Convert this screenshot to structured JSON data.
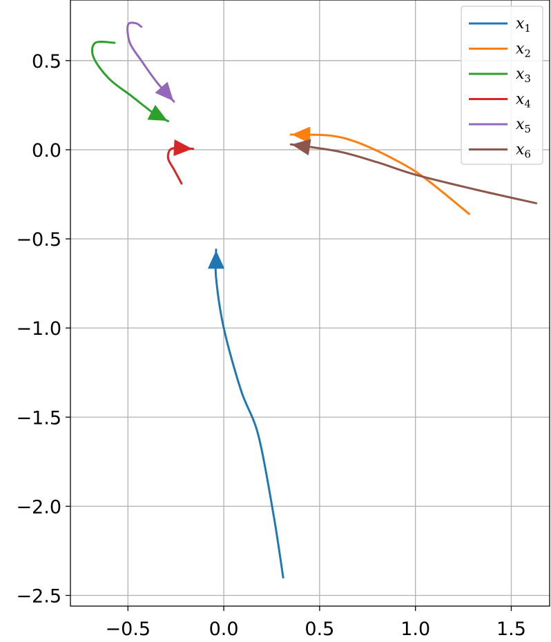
{
  "chart_data": {
    "type": "line",
    "title": "",
    "xlabel": "",
    "ylabel": "",
    "xlim": [
      -0.8,
      1.7
    ],
    "ylim": [
      -2.56,
      0.84
    ],
    "xticks": [
      -0.5,
      0.0,
      0.5,
      1.0,
      1.5
    ],
    "xtick_labels": [
      "−0.5",
      "0.0",
      "0.5",
      "1.0",
      "1.5"
    ],
    "yticks": [
      0.5,
      0.0,
      -0.5,
      -1.0,
      -1.5,
      -2.0,
      -2.5
    ],
    "ytick_labels": [
      "0.5",
      "0.0",
      "−0.5",
      "−1.0",
      "−1.5",
      "−2.0",
      "−2.5"
    ],
    "grid": true,
    "legend_position": "top-right",
    "series": [
      {
        "name": "x",
        "sub": "1",
        "color": "#1f77b4",
        "points": [
          [
            0.31,
            -2.4
          ],
          [
            0.26,
            -2.05
          ],
          [
            0.18,
            -1.6
          ],
          [
            0.09,
            -1.35
          ],
          [
            0.0,
            -1.0
          ],
          [
            -0.04,
            -0.72
          ],
          [
            -0.04,
            -0.56
          ]
        ]
      },
      {
        "name": "x",
        "sub": "2",
        "color": "#ff7f0e",
        "points": [
          [
            1.28,
            -0.36
          ],
          [
            1.05,
            -0.16
          ],
          [
            0.9,
            -0.06
          ],
          [
            0.7,
            0.04
          ],
          [
            0.55,
            0.08
          ],
          [
            0.35,
            0.085
          ]
        ]
      },
      {
        "name": "x",
        "sub": "3",
        "color": "#2ca02c",
        "points": [
          [
            -0.57,
            0.6
          ],
          [
            -0.67,
            0.6
          ],
          [
            -0.68,
            0.52
          ],
          [
            -0.6,
            0.4
          ],
          [
            -0.48,
            0.3
          ],
          [
            -0.36,
            0.2
          ],
          [
            -0.29,
            0.16
          ]
        ]
      },
      {
        "name": "x",
        "sub": "4",
        "color": "#d62728",
        "points": [
          [
            -0.22,
            -0.19
          ],
          [
            -0.26,
            -0.11
          ],
          [
            -0.29,
            -0.05
          ],
          [
            -0.28,
            0.0
          ],
          [
            -0.24,
            0.01
          ],
          [
            -0.16,
            0.005
          ]
        ]
      },
      {
        "name": "x",
        "sub": "5",
        "color": "#9467bd",
        "points": [
          [
            -0.43,
            0.69
          ],
          [
            -0.46,
            0.71
          ],
          [
            -0.5,
            0.7
          ],
          [
            -0.49,
            0.6
          ],
          [
            -0.43,
            0.5
          ],
          [
            -0.35,
            0.38
          ],
          [
            -0.26,
            0.27
          ]
        ]
      },
      {
        "name": "x",
        "sub": "6",
        "color": "#8c564b",
        "points": [
          [
            1.63,
            -0.3
          ],
          [
            1.3,
            -0.22
          ],
          [
            1.0,
            -0.14
          ],
          [
            0.8,
            -0.07
          ],
          [
            0.6,
            -0.01
          ],
          [
            0.35,
            0.03
          ]
        ]
      }
    ]
  }
}
